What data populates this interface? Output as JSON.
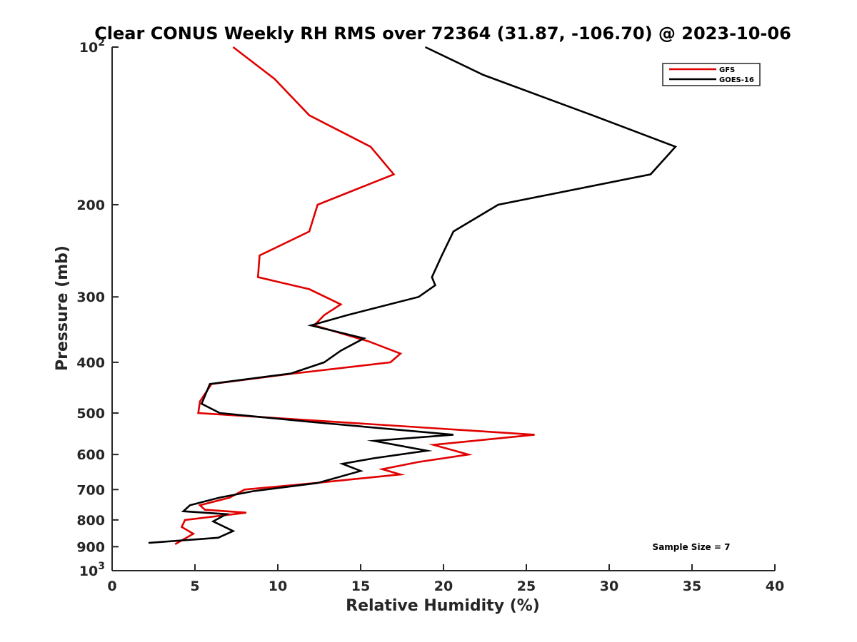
{
  "chart_data": {
    "type": "line",
    "title": "Clear CONUS Weekly RH RMS over 72364 (31.87, -106.70) @ 2023-10-06",
    "xlabel": "Relative Humidity (%)",
    "ylabel": "Pressure (mb)",
    "xlim": [
      0,
      40
    ],
    "ylim": [
      100,
      1000
    ],
    "yscale": "log",
    "y_reversed": true,
    "grid": false,
    "legend_position": "top-right",
    "x_ticks": [
      0,
      5,
      10,
      15,
      20,
      25,
      30,
      35,
      40
    ],
    "x_tick_labels": [
      "0",
      "5",
      "10",
      "15",
      "20",
      "25",
      "30",
      "35",
      "40"
    ],
    "y_ticks": [
      100,
      200,
      300,
      400,
      500,
      600,
      700,
      800,
      900,
      1000
    ],
    "y_tick_labels": [
      {
        "base": "10",
        "exp": "2"
      },
      {
        "base": "200"
      },
      {
        "base": "300"
      },
      {
        "base": "400"
      },
      {
        "base": "500"
      },
      {
        "base": "600"
      },
      {
        "base": "700"
      },
      {
        "base": "800"
      },
      {
        "base": "900"
      },
      {
        "base": "10",
        "exp": "3"
      }
    ],
    "series": [
      {
        "name": "GFS",
        "color": "#e00000",
        "points": [
          [
            7.3,
            100
          ],
          [
            9.8,
            115
          ],
          [
            11.9,
            135
          ],
          [
            15.6,
            155
          ],
          [
            17.0,
            175
          ],
          [
            12.4,
            200
          ],
          [
            11.9,
            225
          ],
          [
            8.9,
            250
          ],
          [
            8.8,
            275
          ],
          [
            11.9,
            290
          ],
          [
            13.8,
            310
          ],
          [
            12.8,
            325
          ],
          [
            12.2,
            340
          ],
          [
            15.5,
            365
          ],
          [
            17.4,
            385
          ],
          [
            16.8,
            400
          ],
          [
            11.0,
            420
          ],
          [
            6.0,
            440
          ],
          [
            5.3,
            475
          ],
          [
            5.2,
            500
          ],
          [
            25.5,
            550
          ],
          [
            19.4,
            575
          ],
          [
            21.5,
            600
          ],
          [
            18.5,
            620
          ],
          [
            16.3,
            640
          ],
          [
            17.4,
            655
          ],
          [
            12.3,
            680
          ],
          [
            8.0,
            700
          ],
          [
            7.1,
            725
          ],
          [
            5.3,
            750
          ],
          [
            5.6,
            765
          ],
          [
            8.1,
            775
          ],
          [
            4.4,
            800
          ],
          [
            4.2,
            825
          ],
          [
            4.9,
            850
          ],
          [
            3.8,
            890
          ]
        ]
      },
      {
        "name": "GOES-16",
        "color": "#000000",
        "points": [
          [
            18.9,
            100
          ],
          [
            22.4,
            113
          ],
          [
            29.0,
            135
          ],
          [
            34.0,
            155
          ],
          [
            32.5,
            175
          ],
          [
            23.3,
            200
          ],
          [
            20.6,
            225
          ],
          [
            19.9,
            250
          ],
          [
            19.3,
            275
          ],
          [
            19.5,
            285
          ],
          [
            18.5,
            300
          ],
          [
            14.2,
            325
          ],
          [
            12.0,
            340
          ],
          [
            15.2,
            360
          ],
          [
            13.8,
            380
          ],
          [
            12.8,
            400
          ],
          [
            10.8,
            420
          ],
          [
            5.9,
            440
          ],
          [
            5.4,
            480
          ],
          [
            6.5,
            500
          ],
          [
            12.0,
            520
          ],
          [
            20.6,
            550
          ],
          [
            15.8,
            565
          ],
          [
            19.0,
            590
          ],
          [
            15.8,
            610
          ],
          [
            13.9,
            625
          ],
          [
            15.0,
            645
          ],
          [
            12.4,
            680
          ],
          [
            8.5,
            705
          ],
          [
            6.5,
            725
          ],
          [
            4.7,
            750
          ],
          [
            4.3,
            770
          ],
          [
            6.9,
            780
          ],
          [
            6.1,
            805
          ],
          [
            7.3,
            840
          ],
          [
            6.4,
            865
          ],
          [
            2.2,
            885
          ]
        ]
      }
    ],
    "annotation": "Sample Size = 7"
  }
}
